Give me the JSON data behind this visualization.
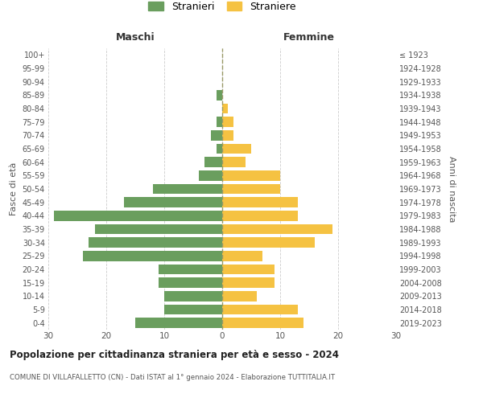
{
  "age_groups": [
    "0-4",
    "5-9",
    "10-14",
    "15-19",
    "20-24",
    "25-29",
    "30-34",
    "35-39",
    "40-44",
    "45-49",
    "50-54",
    "55-59",
    "60-64",
    "65-69",
    "70-74",
    "75-79",
    "80-84",
    "85-89",
    "90-94",
    "95-99",
    "100+"
  ],
  "birth_years": [
    "2019-2023",
    "2014-2018",
    "2009-2013",
    "2004-2008",
    "1999-2003",
    "1994-1998",
    "1989-1993",
    "1984-1988",
    "1979-1983",
    "1974-1978",
    "1969-1973",
    "1964-1968",
    "1959-1963",
    "1954-1958",
    "1949-1953",
    "1944-1948",
    "1939-1943",
    "1934-1938",
    "1929-1933",
    "1924-1928",
    "≤ 1923"
  ],
  "males": [
    15,
    10,
    10,
    11,
    11,
    24,
    23,
    22,
    29,
    17,
    12,
    4,
    3,
    1,
    2,
    1,
    0,
    1,
    0,
    0,
    0
  ],
  "females": [
    14,
    13,
    6,
    9,
    9,
    7,
    16,
    19,
    13,
    13,
    10,
    10,
    4,
    5,
    2,
    2,
    1,
    0,
    0,
    0,
    0
  ],
  "male_color": "#6a9e5e",
  "female_color": "#f5c242",
  "male_label": "Stranieri",
  "female_label": "Straniere",
  "title": "Popolazione per cittadinanza straniera per età e sesso - 2024",
  "subtitle": "COMUNE DI VILLAFALLETTO (CN) - Dati ISTAT al 1° gennaio 2024 - Elaborazione TUTTITALIA.IT",
  "xlabel_left": "Maschi",
  "xlabel_right": "Femmine",
  "ylabel_left": "Fasce di età",
  "ylabel_right": "Anni di nascita",
  "xlim": 30,
  "background_color": "#ffffff",
  "grid_color": "#cccccc"
}
